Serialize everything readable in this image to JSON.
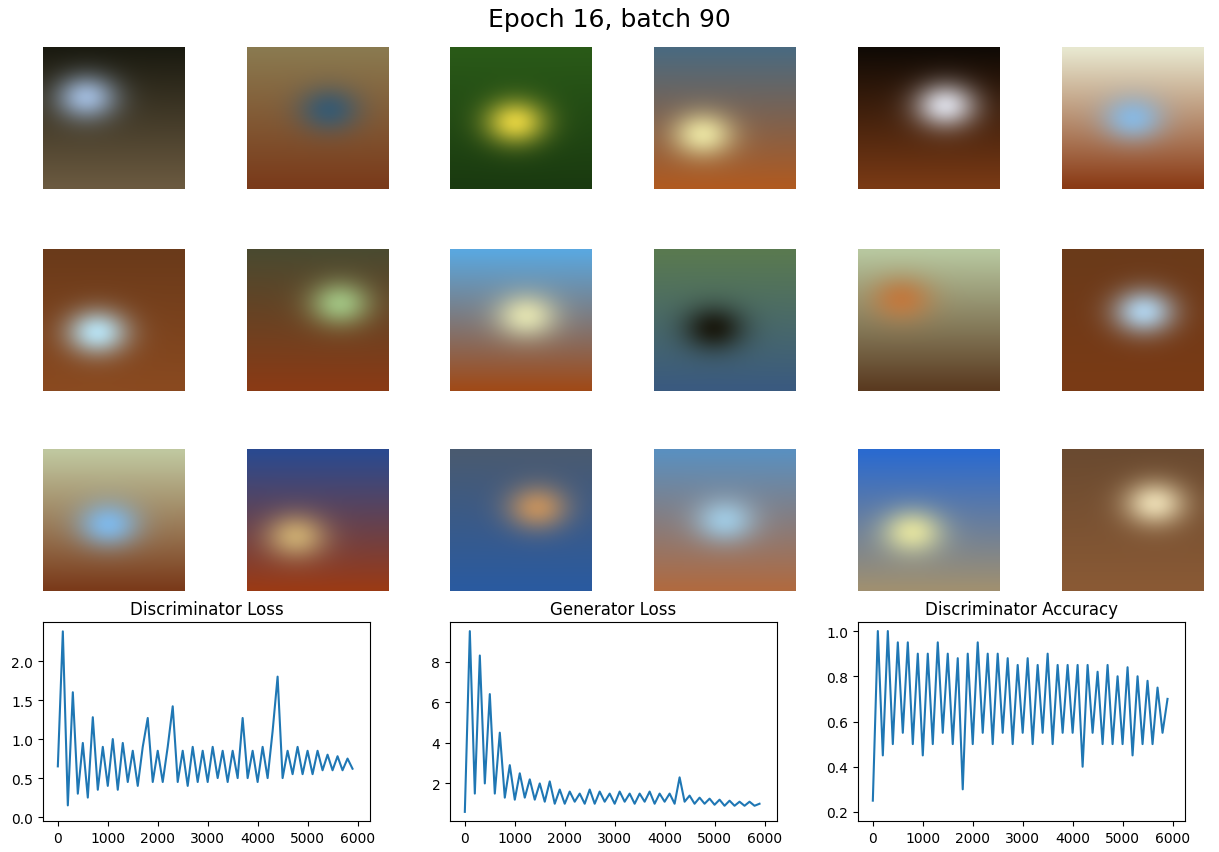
{
  "title": "Epoch 16, batch 90",
  "chart_data": [
    {
      "type": "line",
      "title": "Discriminator Loss",
      "color": "#1f77b4",
      "x": [
        0,
        100,
        200,
        300,
        400,
        500,
        600,
        700,
        800,
        900,
        1000,
        1100,
        1200,
        1300,
        1400,
        1500,
        1600,
        1700,
        1800,
        1900,
        2000,
        2100,
        2200,
        2300,
        2400,
        2500,
        2600,
        2700,
        2800,
        2900,
        3000,
        3100,
        3200,
        3300,
        3400,
        3500,
        3600,
        3700,
        3800,
        3900,
        4000,
        4100,
        4200,
        4300,
        4400,
        4500,
        4600,
        4700,
        4800,
        4900,
        5000,
        5100,
        5200,
        5300,
        5400,
        5500,
        5600,
        5700,
        5800,
        5900
      ],
      "values": [
        0.65,
        2.38,
        0.15,
        1.6,
        0.3,
        0.95,
        0.25,
        1.28,
        0.35,
        0.9,
        0.4,
        1.0,
        0.35,
        0.95,
        0.45,
        0.85,
        0.4,
        0.9,
        1.27,
        0.45,
        0.85,
        0.45,
        0.9,
        1.42,
        0.45,
        0.85,
        0.4,
        0.9,
        0.45,
        0.85,
        0.45,
        0.9,
        0.5,
        0.85,
        0.45,
        0.85,
        0.5,
        1.27,
        0.5,
        0.85,
        0.45,
        0.9,
        0.5,
        1.1,
        1.8,
        0.5,
        0.85,
        0.55,
        0.9,
        0.55,
        0.85,
        0.55,
        0.85,
        0.6,
        0.8,
        0.6,
        0.78,
        0.6,
        0.75,
        0.62
      ],
      "xlim": [
        -297,
        6250
      ],
      "xticks": [
        0,
        1000,
        2000,
        3000,
        4000,
        5000,
        6000
      ],
      "ylim": [
        -0.05,
        2.5
      ],
      "yticks": [
        {
          "value": 0,
          "label": "0.0"
        },
        0.5,
        {
          "value": 1,
          "label": "1.0"
        },
        1.5,
        {
          "value": 2,
          "label": "2.0"
        }
      ]
    },
    {
      "type": "line",
      "title": "Generator Loss",
      "color": "#1f77b4",
      "x": [
        0,
        100,
        200,
        300,
        400,
        500,
        600,
        700,
        800,
        900,
        1000,
        1100,
        1200,
        1300,
        1400,
        1500,
        1600,
        1700,
        1800,
        1900,
        2000,
        2100,
        2200,
        2300,
        2400,
        2500,
        2600,
        2700,
        2800,
        2900,
        3000,
        3100,
        3200,
        3300,
        3400,
        3500,
        3600,
        3700,
        3800,
        3900,
        4000,
        4100,
        4200,
        4300,
        4400,
        4500,
        4600,
        4700,
        4800,
        4900,
        5000,
        5100,
        5200,
        5300,
        5400,
        5500,
        5600,
        5700,
        5800,
        5900
      ],
      "values": [
        0.6,
        9.5,
        1.5,
        8.3,
        2.0,
        6.4,
        1.5,
        4.5,
        1.3,
        2.9,
        1.2,
        2.5,
        1.3,
        2.2,
        1.2,
        2.0,
        1.1,
        2.1,
        1.0,
        1.7,
        1.0,
        1.6,
        1.1,
        1.5,
        1.0,
        1.7,
        1.0,
        1.6,
        1.1,
        1.5,
        1.0,
        1.6,
        1.1,
        1.5,
        1.0,
        1.5,
        1.1,
        1.6,
        1.0,
        1.5,
        1.1,
        1.5,
        1.0,
        2.3,
        1.1,
        1.4,
        1.0,
        1.3,
        1.0,
        1.25,
        0.95,
        1.2,
        0.9,
        1.15,
        0.9,
        1.1,
        0.9,
        1.1,
        0.9,
        1.0
      ],
      "xlim": [
        -297,
        6250
      ],
      "xticks": [
        0,
        1000,
        2000,
        3000,
        4000,
        5000,
        6000
      ],
      "ylim": [
        0.15,
        9.95
      ],
      "yticks": [
        2,
        4,
        6,
        8
      ]
    },
    {
      "type": "line",
      "title": "Discriminator Accuracy",
      "color": "#1f77b4",
      "x": [
        0,
        100,
        200,
        300,
        400,
        500,
        600,
        700,
        800,
        900,
        1000,
        1100,
        1200,
        1300,
        1400,
        1500,
        1600,
        1700,
        1800,
        1900,
        2000,
        2100,
        2200,
        2300,
        2400,
        2500,
        2600,
        2700,
        2800,
        2900,
        3000,
        3100,
        3200,
        3300,
        3400,
        3500,
        3600,
        3700,
        3800,
        3900,
        4000,
        4100,
        4200,
        4300,
        4400,
        4500,
        4600,
        4700,
        4800,
        4900,
        5000,
        5100,
        5200,
        5300,
        5400,
        5500,
        5600,
        5700,
        5800,
        5900
      ],
      "values": [
        0.25,
        1.0,
        0.45,
        1.0,
        0.5,
        0.95,
        0.55,
        0.95,
        0.5,
        0.9,
        0.45,
        0.9,
        0.5,
        0.95,
        0.55,
        0.9,
        0.5,
        0.88,
        0.3,
        0.9,
        0.5,
        0.95,
        0.55,
        0.9,
        0.5,
        0.9,
        0.55,
        0.88,
        0.5,
        0.85,
        0.55,
        0.88,
        0.5,
        0.85,
        0.55,
        0.9,
        0.5,
        0.85,
        0.55,
        0.85,
        0.55,
        0.85,
        0.4,
        0.85,
        0.55,
        0.82,
        0.5,
        0.85,
        0.5,
        0.8,
        0.5,
        0.84,
        0.45,
        0.8,
        0.5,
        0.78,
        0.5,
        0.75,
        0.55,
        0.7
      ],
      "xlim": [
        -297,
        6250
      ],
      "xticks": [
        0,
        1000,
        2000,
        3000,
        4000,
        5000,
        6000
      ],
      "ylim": [
        0.16,
        1.04
      ],
      "yticks": [
        0.2,
        0.4,
        0.6,
        0.8,
        {
          "value": 1,
          "label": "1.0"
        }
      ]
    }
  ]
}
